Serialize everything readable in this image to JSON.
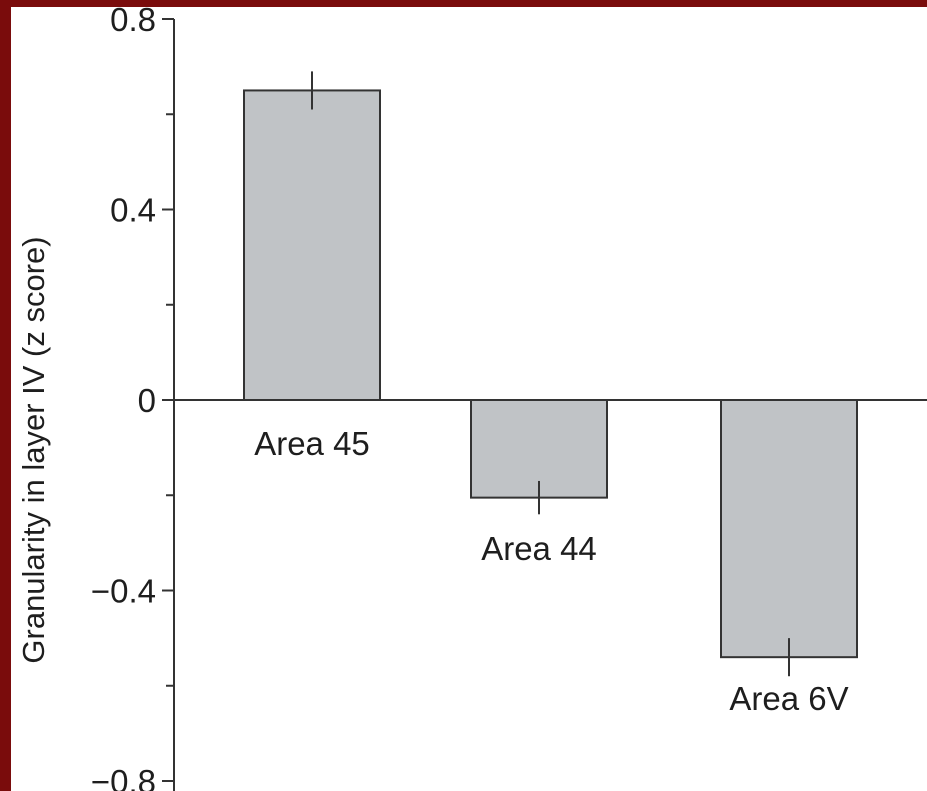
{
  "chart_data": {
    "type": "bar",
    "title": "",
    "xlabel": "",
    "ylabel": "Granularity in layer IV (z score)",
    "categories": [
      "Area 45",
      "Area 44",
      "Area 6V"
    ],
    "values": [
      0.65,
      -0.205,
      -0.54
    ],
    "error": [
      0.04,
      0.035,
      0.04
    ],
    "ylim": [
      -0.8,
      0.8
    ],
    "yticks": [
      0.8,
      0.4,
      0,
      -0.4,
      -0.8
    ],
    "ytick_labels": [
      "0.8",
      "0.4",
      "0",
      "−0.4",
      "−0.8"
    ],
    "grid": false,
    "legend": "none",
    "colors": {
      "bar_fill": "#c0c3c6",
      "bar_stroke": "#333333",
      "axis": "#333333",
      "frame": "#7a0c0c"
    }
  }
}
